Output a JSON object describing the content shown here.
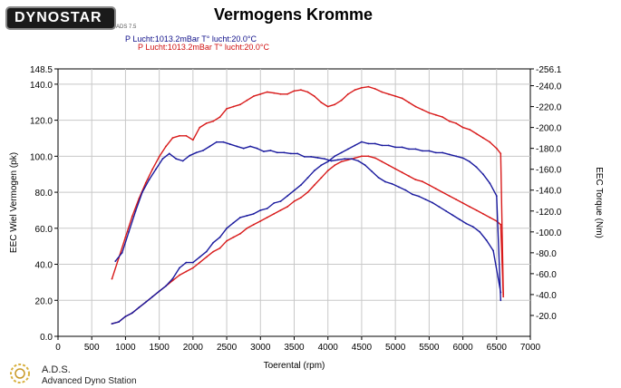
{
  "header": {
    "logo_text": "DYNOSTAR",
    "logo_sub": "ADS 7.5",
    "title": "Vermogens Kromme",
    "condition_blue": "P Lucht:1013.2mBar T° lucht:20.0°C",
    "condition_red": "P Lucht:1013.2mBar T° lucht:20.0°C"
  },
  "footer": {
    "name": "A.D.S.",
    "description": "Advanced Dyno Station"
  },
  "colors": {
    "blue": "#1a1a9e",
    "red": "#d81a1a",
    "grid": "#c8c8c8"
  },
  "chart_data": {
    "type": "line",
    "title": "Vermogens Kromme",
    "xlabel": "Toerental (rpm)",
    "ylabel_left": "EEC Wiel Vermogen (pk)",
    "ylabel_right": "EEC Torque (Nm)",
    "xlim": [
      0,
      7000
    ],
    "ylim_left": [
      0,
      148.5
    ],
    "ylim_right": [
      0,
      256.1
    ],
    "x_ticks": [
      "0",
      "500",
      "1000",
      "1500",
      "2000",
      "2500",
      "3000",
      "3500",
      "4000",
      "4500",
      "5000",
      "5500",
      "6000",
      "6500",
      "7000"
    ],
    "y_ticks_left": [
      "0.0",
      "20.0",
      "40.0",
      "60.0",
      "80.0",
      "100.0",
      "120.0",
      "140.0",
      "148.5"
    ],
    "y_ticks_right": [
      "-20.0",
      "-40.0",
      "-60.0",
      "-80.0",
      "-100.0",
      "-120.0",
      "-140.0",
      "-160.0",
      "-180.0",
      "-200.0",
      "-220.0",
      "-240.0",
      "-256.1"
    ],
    "grid": true,
    "series": [
      {
        "color": "#d81a1a",
        "axis": "left",
        "x": [
          800,
          900,
          1000,
          1100,
          1200,
          1300,
          1400,
          1500,
          1600,
          1700,
          1800,
          1900,
          2000,
          2100,
          2200,
          2300,
          2400,
          2500,
          2600,
          2700,
          2800,
          2900,
          3000,
          3100,
          3200,
          3300,
          3400,
          3500,
          3600,
          3700,
          3800,
          3900,
          4000,
          4100,
          4200,
          4300,
          4400,
          4500,
          4600,
          4700,
          4800,
          4900,
          5000,
          5100,
          5200,
          5300,
          5400,
          5500,
          5600,
          5700,
          5800,
          5900,
          6000,
          6100,
          6200,
          6300,
          6400,
          6500,
          6560,
          6600
        ],
        "y": [
          7,
          8,
          11,
          13,
          16,
          19,
          22,
          25,
          28,
          31,
          34,
          36,
          38,
          41,
          44,
          47,
          49,
          53,
          55,
          57,
          60,
          62,
          64,
          66,
          68,
          70,
          72,
          75,
          77,
          80,
          84,
          88,
          92,
          95,
          97,
          98,
          99,
          100,
          100,
          99,
          97,
          95,
          93,
          91,
          89,
          87,
          86,
          84,
          82,
          80,
          78,
          76,
          74,
          72,
          70,
          68,
          66,
          64,
          62,
          22
        ]
      },
      {
        "color": "#d81a1a",
        "axis": "right",
        "x": [
          800,
          900,
          1000,
          1100,
          1200,
          1300,
          1400,
          1500,
          1600,
          1700,
          1800,
          1900,
          2000,
          2100,
          2200,
          2300,
          2400,
          2500,
          2600,
          2700,
          2800,
          2900,
          3000,
          3100,
          3200,
          3300,
          3400,
          3500,
          3600,
          3700,
          3800,
          3900,
          4000,
          4100,
          4200,
          4300,
          4400,
          4500,
          4600,
          4700,
          4800,
          4900,
          5000,
          5100,
          5200,
          5300,
          5400,
          5500,
          5600,
          5700,
          5800,
          5900,
          6000,
          6100,
          6200,
          6300,
          6400,
          6500,
          6560,
          6600
        ],
        "y": [
          55,
          75,
          95,
          115,
          132,
          147,
          160,
          172,
          182,
          190,
          192,
          192,
          188,
          200,
          204,
          206,
          210,
          218,
          220,
          222,
          226,
          230,
          232,
          234,
          233,
          232,
          232,
          235,
          236,
          234,
          230,
          224,
          220,
          222,
          226,
          232,
          236,
          238,
          239,
          237,
          234,
          232,
          230,
          228,
          224,
          220,
          217,
          214,
          212,
          210,
          206,
          204,
          200,
          198,
          194,
          190,
          186,
          180,
          175,
          40
        ]
      },
      {
        "color": "#1a1a9e",
        "axis": "left",
        "x": [
          800,
          900,
          1000,
          1100,
          1200,
          1300,
          1400,
          1500,
          1600,
          1700,
          1800,
          1900,
          2000,
          2100,
          2200,
          2300,
          2400,
          2500,
          2600,
          2700,
          2800,
          2900,
          3000,
          3100,
          3200,
          3300,
          3400,
          3500,
          3600,
          3700,
          3800,
          3900,
          4000,
          4100,
          4200,
          4300,
          4400,
          4500,
          4600,
          4700,
          4800,
          4900,
          5000,
          5100,
          5200,
          5300,
          5400,
          5500,
          5600,
          5700,
          5800,
          5900,
          6000,
          6100,
          6200,
          6300,
          6400,
          6500,
          6560
        ],
        "y": [
          7,
          8,
          11,
          13,
          16,
          19,
          22,
          25,
          28,
          32,
          38,
          41,
          41,
          44,
          47,
          52,
          55,
          60,
          63,
          66,
          67,
          68,
          70,
          71,
          74,
          75,
          78,
          81,
          84,
          88,
          92,
          95,
          97,
          100,
          102,
          104,
          106,
          108,
          107,
          107,
          106,
          106,
          105,
          105,
          104,
          104,
          103,
          103,
          102,
          102,
          101,
          100,
          99,
          97,
          94,
          90,
          85,
          78,
          20
        ]
      },
      {
        "color": "#1a1a9e",
        "axis": "right",
        "x": [
          850,
          950,
          1050,
          1150,
          1250,
          1350,
          1450,
          1550,
          1650,
          1750,
          1850,
          1950,
          2050,
          2150,
          2250,
          2350,
          2450,
          2550,
          2650,
          2750,
          2850,
          2950,
          3050,
          3150,
          3250,
          3350,
          3450,
          3550,
          3650,
          3750,
          3850,
          3950,
          4050,
          4150,
          4250,
          4350,
          4450,
          4550,
          4650,
          4750,
          4850,
          4950,
          5050,
          5150,
          5250,
          5350,
          5450,
          5550,
          5650,
          5750,
          5850,
          5950,
          6050,
          6150,
          6250,
          6350,
          6450,
          6560
        ],
        "y": [
          72,
          80,
          100,
          120,
          138,
          150,
          160,
          170,
          175,
          170,
          168,
          173,
          176,
          178,
          182,
          186,
          186,
          184,
          182,
          180,
          182,
          180,
          177,
          178,
          176,
          176,
          175,
          175,
          172,
          172,
          171,
          170,
          168,
          169,
          170,
          170,
          168,
          164,
          158,
          152,
          148,
          146,
          143,
          140,
          136,
          134,
          131,
          128,
          124,
          120,
          116,
          112,
          108,
          105,
          100,
          92,
          82,
          42
        ]
      }
    ]
  }
}
